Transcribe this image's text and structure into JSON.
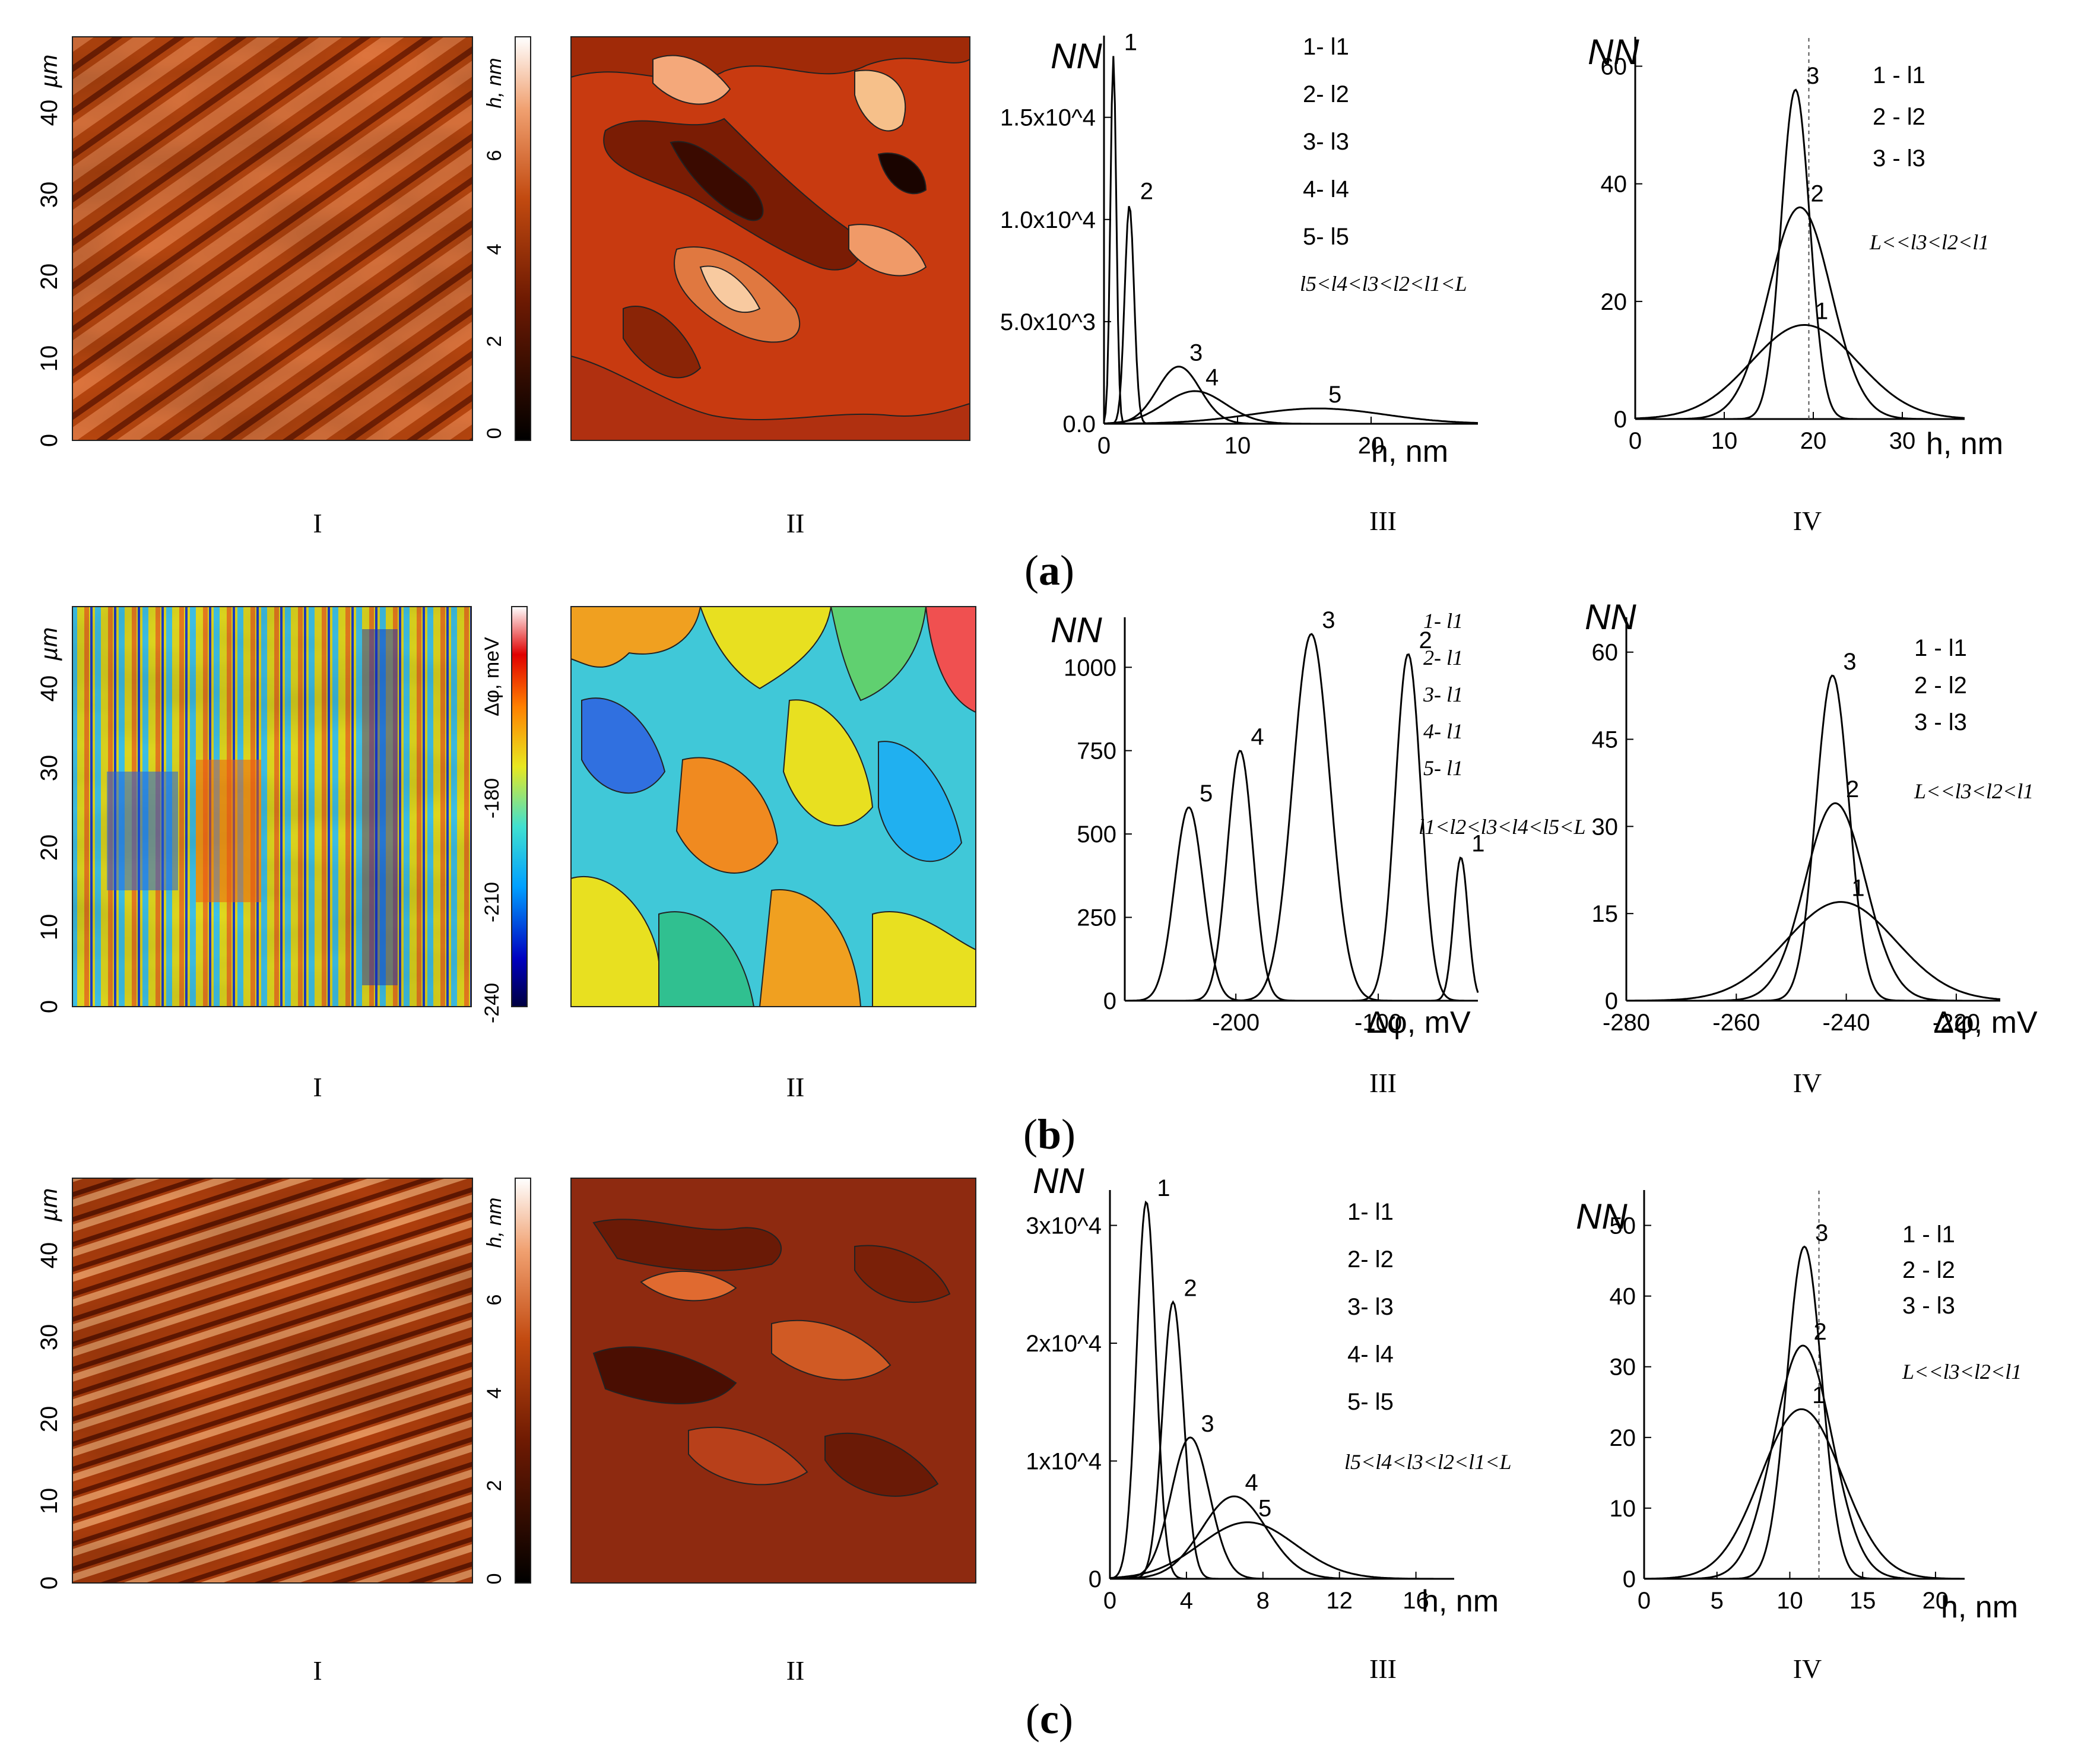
{
  "figure": {
    "rows": [
      {
        "id": "a",
        "caption": "a",
        "panel_labels": [
          "I",
          "II",
          "III",
          "IV"
        ],
        "map": {
          "y_unit": "µm",
          "y_ticks": [
            "0",
            "10",
            "20",
            "30",
            "40"
          ],
          "colorbar_label": "h, nm",
          "colorbar_ticks": [
            "0",
            "2",
            "4",
            "6"
          ]
        },
        "hist": {
          "ylabel": "NN",
          "xlabel": "h, nm",
          "legend": [
            "1- l1",
            "2- l2",
            "3- l3",
            "4- l4",
            "5- l5"
          ],
          "relation": "l5<l4<l3<l2<l1<L"
        },
        "gauss": {
          "ylabel": "NN",
          "xlabel": "h, nm",
          "legend": [
            "1 - l1",
            "2 - l2",
            "3 - l3"
          ],
          "relation": "L<<l3<l2<l1"
        }
      },
      {
        "id": "b",
        "caption": "b",
        "panel_labels": [
          "I",
          "II",
          "III",
          "IV"
        ],
        "map": {
          "y_unit": "µm",
          "y_ticks": [
            "0",
            "10",
            "20",
            "30",
            "40"
          ],
          "colorbar_label": "Δφ, meV",
          "colorbar_ticks": [
            "-240",
            "-210",
            "-180"
          ]
        },
        "hist": {
          "ylabel": "NN",
          "xlabel": "Δφ, mV",
          "legend": [
            "1- l1",
            "2- l1",
            "3- l1",
            "4- l1",
            "5- l1"
          ],
          "relation": "l1<l2<l3<l4<l5<L"
        },
        "gauss": {
          "ylabel": "NN",
          "xlabel": "Δφ, mV",
          "legend": [
            "1 - l1",
            "2 - l2",
            "3 - l3"
          ],
          "relation": "L<<l3<l2<l1"
        }
      },
      {
        "id": "c",
        "caption": "c",
        "panel_labels": [
          "I",
          "II",
          "III",
          "IV"
        ],
        "map": {
          "y_unit": "µm",
          "y_ticks": [
            "0",
            "10",
            "20",
            "30",
            "40"
          ],
          "colorbar_label": "h, nm",
          "colorbar_ticks": [
            "0",
            "2",
            "4",
            "6"
          ]
        },
        "hist": {
          "ylabel": "NN",
          "xlabel": "h, nm",
          "legend": [
            "1- l1",
            "2- l2",
            "3- l3",
            "4- l4",
            "5- l5"
          ],
          "relation": "l5<l4<l3<l2<l1<L"
        },
        "gauss": {
          "ylabel": "NN",
          "xlabel": "h, nm",
          "legend": [
            "1 - l1",
            "2 - l2",
            "3 - l3"
          ],
          "relation": "L<<l3<l2<l1"
        }
      }
    ]
  },
  "chart_data": [
    {
      "id": "a-III",
      "type": "line",
      "title": "",
      "xlabel": "h, nm",
      "ylabel": "NN",
      "xlim": [
        0,
        28
      ],
      "ylim": [
        0,
        19000
      ],
      "x_ticks": [
        "0",
        "10",
        "20"
      ],
      "y_ticks": [
        "0.0",
        "5.0x10^3",
        "1.0x10^4",
        "1.5x10^4"
      ],
      "y_tick_values": [
        0,
        5000,
        10000,
        15000
      ],
      "series": [
        {
          "name": "1",
          "mu": 0.7,
          "sigma": 0.22,
          "peak": 18000
        },
        {
          "name": "2",
          "mu": 1.9,
          "sigma": 0.35,
          "peak": 10700
        },
        {
          "name": "3",
          "mu": 5.6,
          "sigma": 1.6,
          "peak": 2800
        },
        {
          "name": "4",
          "mu": 6.8,
          "sigma": 2.3,
          "peak": 1600
        },
        {
          "name": "5",
          "mu": 16.0,
          "sigma": 5.0,
          "peak": 750
        }
      ]
    },
    {
      "id": "a-IV",
      "type": "line",
      "title": "",
      "xlabel": "h, nm",
      "ylabel": "NN",
      "xlim": [
        0,
        37
      ],
      "ylim": [
        0,
        65
      ],
      "x_ticks": [
        "0",
        "10",
        "20",
        "30"
      ],
      "y_ticks": [
        "0",
        "20",
        "40",
        "60"
      ],
      "series": [
        {
          "name": "1",
          "mu": 19.0,
          "sigma": 6.0,
          "peak": 16
        },
        {
          "name": "2",
          "mu": 18.5,
          "sigma": 3.5,
          "peak": 36
        },
        {
          "name": "3",
          "mu": 18.0,
          "sigma": 1.6,
          "peak": 56
        }
      ]
    },
    {
      "id": "b-III",
      "type": "line",
      "title": "",
      "xlabel": "Δφ, mV",
      "ylabel": "NN",
      "xlim": [
        -278,
        -30
      ],
      "ylim": [
        0,
        1150
      ],
      "x_ticks": [
        "-200",
        "-100"
      ],
      "y_ticks": [
        "0",
        "250",
        "500",
        "750",
        "1000"
      ],
      "series": [
        {
          "name": "5",
          "mu": -233,
          "sigma": 10,
          "peak": 580
        },
        {
          "name": "4",
          "mu": -197,
          "sigma": 9,
          "peak": 750
        },
        {
          "name": "3",
          "mu": -147,
          "sigma": 13,
          "peak": 1100
        },
        {
          "name": "2",
          "mu": -79,
          "sigma": 9,
          "peak": 1040
        },
        {
          "name": "1",
          "mu": -42,
          "sigma": 5,
          "peak": 430
        }
      ]
    },
    {
      "id": "b-IV",
      "type": "line",
      "title": "",
      "xlabel": "Δφ, mV",
      "ylabel": "NN",
      "xlim": [
        -280,
        -212
      ],
      "ylim": [
        0,
        66
      ],
      "x_ticks": [
        "-280",
        "-260",
        "-240",
        "-220"
      ],
      "y_ticks": [
        "0",
        "15",
        "30",
        "45",
        "60"
      ],
      "series": [
        {
          "name": "1",
          "mu": -241,
          "sigma": 10,
          "peak": 17
        },
        {
          "name": "2",
          "mu": -242,
          "sigma": 5.5,
          "peak": 34
        },
        {
          "name": "3",
          "mu": -242.5,
          "sigma": 3.0,
          "peak": 56
        }
      ]
    },
    {
      "id": "c-III",
      "type": "line",
      "title": "",
      "xlabel": "h, nm",
      "ylabel": "NN",
      "xlim": [
        0,
        18
      ],
      "ylim": [
        0,
        33000
      ],
      "x_ticks": [
        "0",
        "4",
        "8",
        "12",
        "16"
      ],
      "y_ticks": [
        "0",
        "1x10^4",
        "2x10^4",
        "3x10^4"
      ],
      "y_tick_values": [
        0,
        10000,
        20000,
        30000
      ],
      "series": [
        {
          "name": "1",
          "mu": 1.9,
          "sigma": 0.5,
          "peak": 32000
        },
        {
          "name": "2",
          "mu": 3.3,
          "sigma": 0.55,
          "peak": 23500
        },
        {
          "name": "3",
          "mu": 4.2,
          "sigma": 1.0,
          "peak": 12000
        },
        {
          "name": "4",
          "mu": 6.5,
          "sigma": 1.7,
          "peak": 7000
        },
        {
          "name": "5",
          "mu": 7.2,
          "sigma": 2.5,
          "peak": 4800
        }
      ]
    },
    {
      "id": "c-IV",
      "type": "line",
      "title": "",
      "xlabel": "h, nm",
      "ylabel": "NN",
      "xlim": [
        0,
        22
      ],
      "ylim": [
        0,
        55
      ],
      "x_ticks": [
        "0",
        "5",
        "10",
        "15",
        "20"
      ],
      "y_ticks": [
        "0",
        "10",
        "20",
        "30",
        "40",
        "50"
      ],
      "series": [
        {
          "name": "1",
          "mu": 10.8,
          "sigma": 2.8,
          "peak": 24
        },
        {
          "name": "2",
          "mu": 10.9,
          "sigma": 2.0,
          "peak": 33
        },
        {
          "name": "3",
          "mu": 11.0,
          "sigma": 1.2,
          "peak": 47
        }
      ]
    }
  ]
}
